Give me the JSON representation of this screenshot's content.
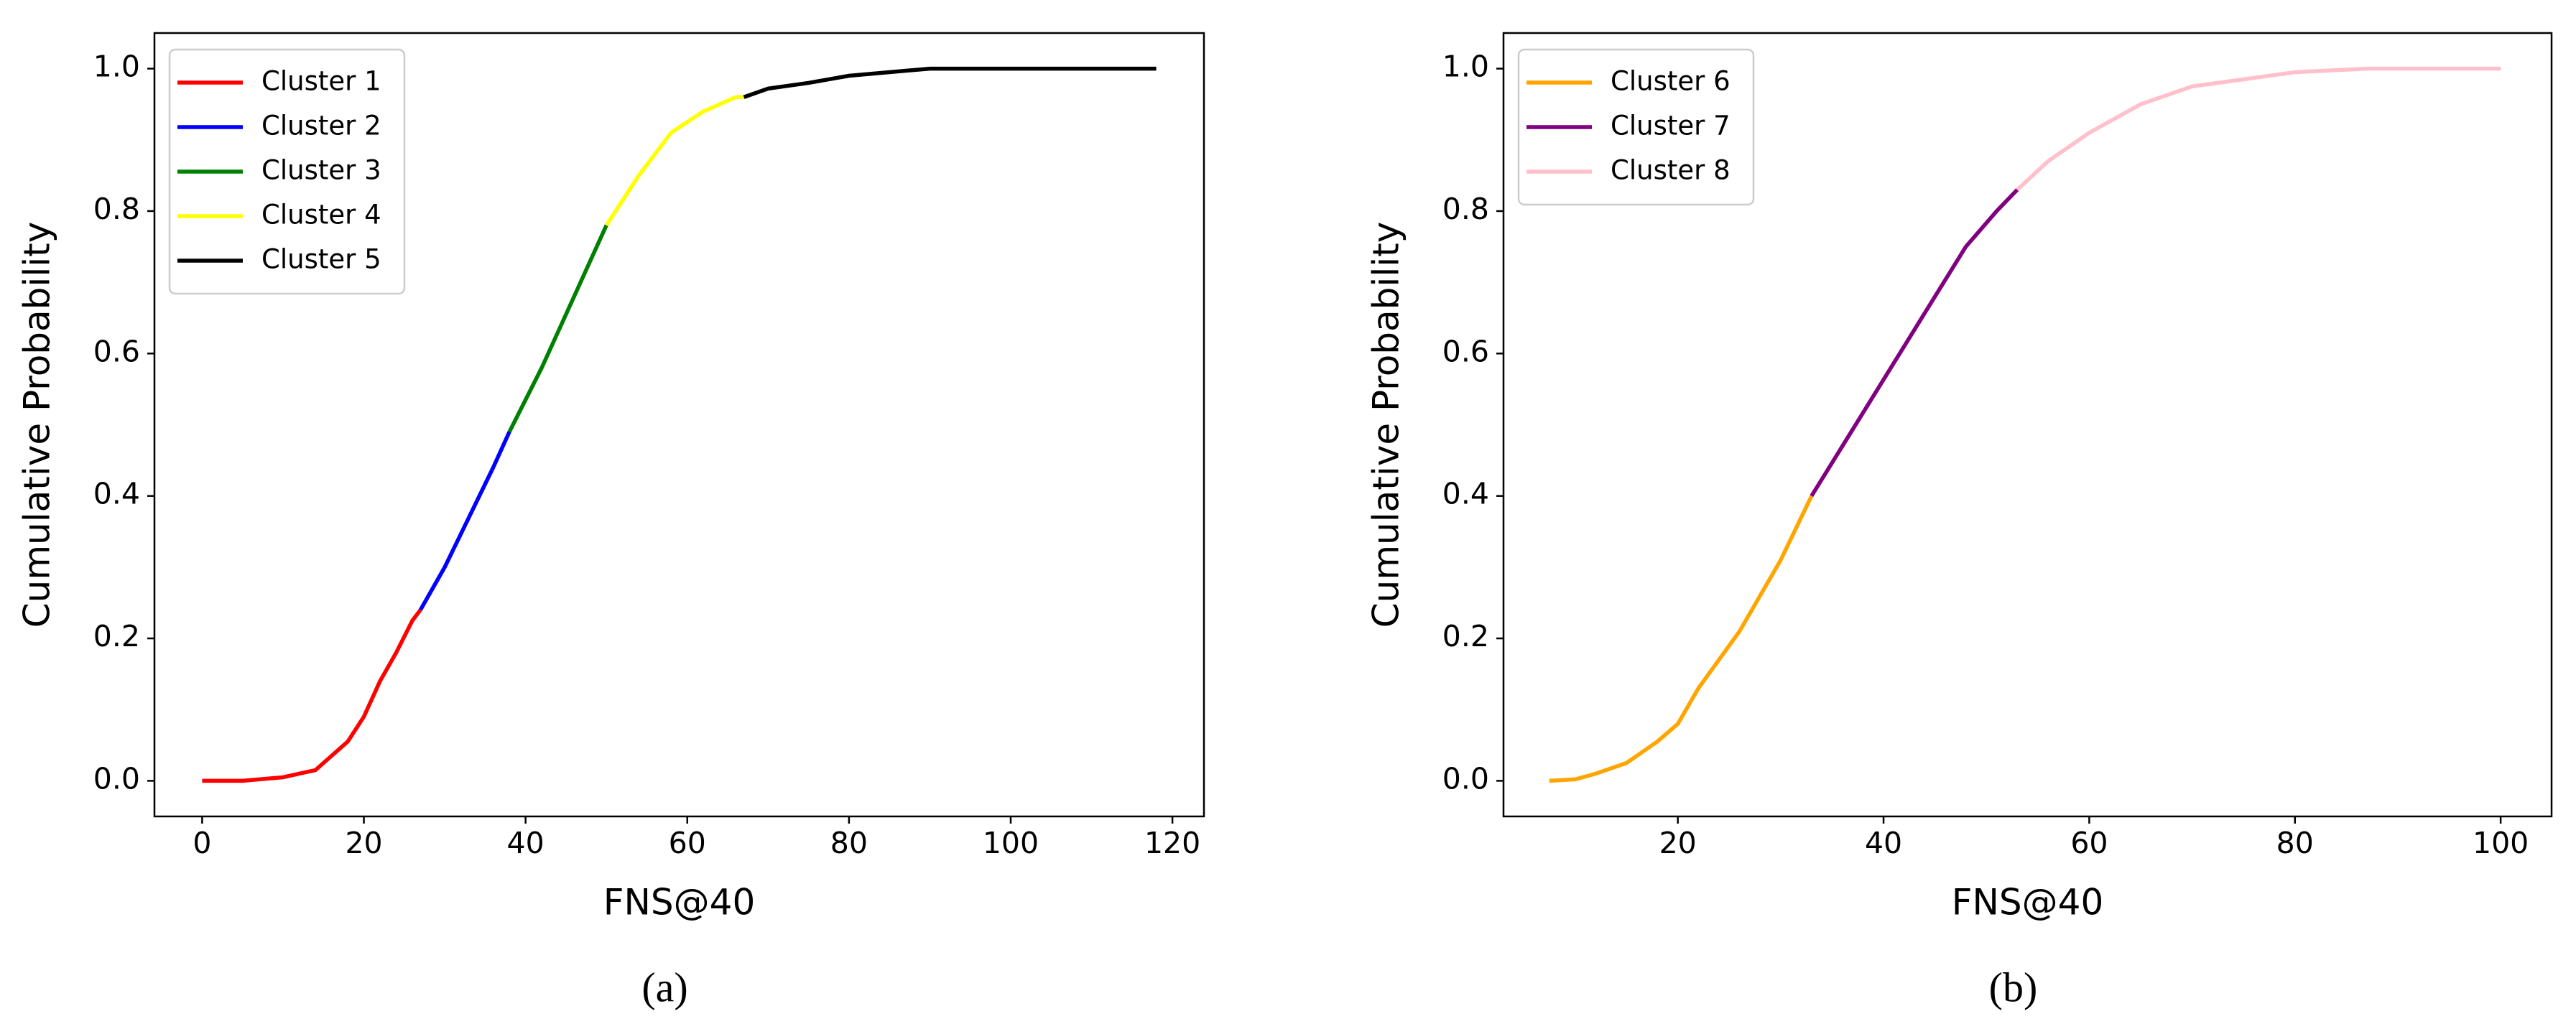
{
  "chart_data": [
    {
      "type": "line",
      "caption": "(a)",
      "x_label": "FNS@40",
      "y_label": "Cumulative Probability",
      "xlim": [
        -5.9,
        123.9
      ],
      "ylim": [
        -0.05,
        1.05
      ],
      "xticks": [
        0,
        20,
        40,
        60,
        80,
        100,
        120
      ],
      "yticks": [
        {
          "value": 0,
          "label": "0.0"
        },
        {
          "value": 0.2,
          "label": "0.2"
        },
        {
          "value": 0.4,
          "label": "0.4"
        },
        {
          "value": 0.6,
          "label": "0.6"
        },
        {
          "value": 0.8,
          "label": "0.8"
        },
        {
          "value": 1,
          "label": "1.0"
        }
      ],
      "legend": "upper left",
      "series": [
        {
          "name": "Cluster 1",
          "color": "#ff0000",
          "x": [
            0,
            5,
            10,
            12,
            14,
            16,
            18,
            20,
            22,
            24,
            26,
            27
          ],
          "values": [
            0,
            0,
            0.005,
            0.01,
            0.015,
            0.035,
            0.055,
            0.09,
            0.14,
            0.18,
            0.225,
            0.24
          ]
        },
        {
          "name": "Cluster 2",
          "color": "#0000ff",
          "x": [
            27,
            30,
            33,
            36,
            38
          ],
          "values": [
            0.24,
            0.3,
            0.37,
            0.44,
            0.49
          ]
        },
        {
          "name": "Cluster 3",
          "color": "#008000",
          "x": [
            38,
            42,
            46,
            50
          ],
          "values": [
            0.49,
            0.58,
            0.68,
            0.78
          ]
        },
        {
          "name": "Cluster 4",
          "color": "#ffff00",
          "x": [
            50,
            54,
            58,
            62,
            66,
            67
          ],
          "values": [
            0.78,
            0.85,
            0.91,
            0.94,
            0.96,
            0.96
          ]
        },
        {
          "name": "Cluster 5",
          "color": "#000000",
          "x": [
            67,
            70,
            75,
            80,
            85,
            90,
            100,
            118
          ],
          "values": [
            0.96,
            0.972,
            0.98,
            0.99,
            0.995,
            1,
            1,
            1
          ]
        }
      ]
    },
    {
      "type": "line",
      "caption": "(b)",
      "x_label": "FNS@40",
      "y_label": "Cumulative Probability",
      "xlim": [
        3.05,
        104.95
      ],
      "ylim": [
        -0.05,
        1.05
      ],
      "xticks": [
        20,
        40,
        60,
        80,
        100
      ],
      "yticks": [
        {
          "value": 0,
          "label": "0.0"
        },
        {
          "value": 0.2,
          "label": "0.2"
        },
        {
          "value": 0.4,
          "label": "0.4"
        },
        {
          "value": 0.6,
          "label": "0.6"
        },
        {
          "value": 0.8,
          "label": "0.8"
        },
        {
          "value": 1,
          "label": "1.0"
        }
      ],
      "legend": "upper left",
      "series": [
        {
          "name": "Cluster 6",
          "color": "#ffa500",
          "x": [
            7.5,
            10,
            12,
            15,
            18,
            20,
            22,
            24,
            26,
            28,
            30,
            33
          ],
          "values": [
            0,
            0.002,
            0.01,
            0.025,
            0.055,
            0.08,
            0.13,
            0.17,
            0.21,
            0.26,
            0.31,
            0.4
          ]
        },
        {
          "name": "Cluster 7",
          "color": "#800080",
          "x": [
            33,
            36,
            39,
            42,
            45,
            48,
            51,
            53
          ],
          "values": [
            0.4,
            0.47,
            0.54,
            0.61,
            0.68,
            0.75,
            0.8,
            0.83
          ]
        },
        {
          "name": "Cluster 8",
          "color": "#ffc0cb",
          "x": [
            53,
            56,
            60,
            65,
            70,
            75,
            80,
            87,
            100
          ],
          "values": [
            0.83,
            0.87,
            0.91,
            0.95,
            0.975,
            0.985,
            0.995,
            1,
            1
          ]
        }
      ]
    }
  ]
}
